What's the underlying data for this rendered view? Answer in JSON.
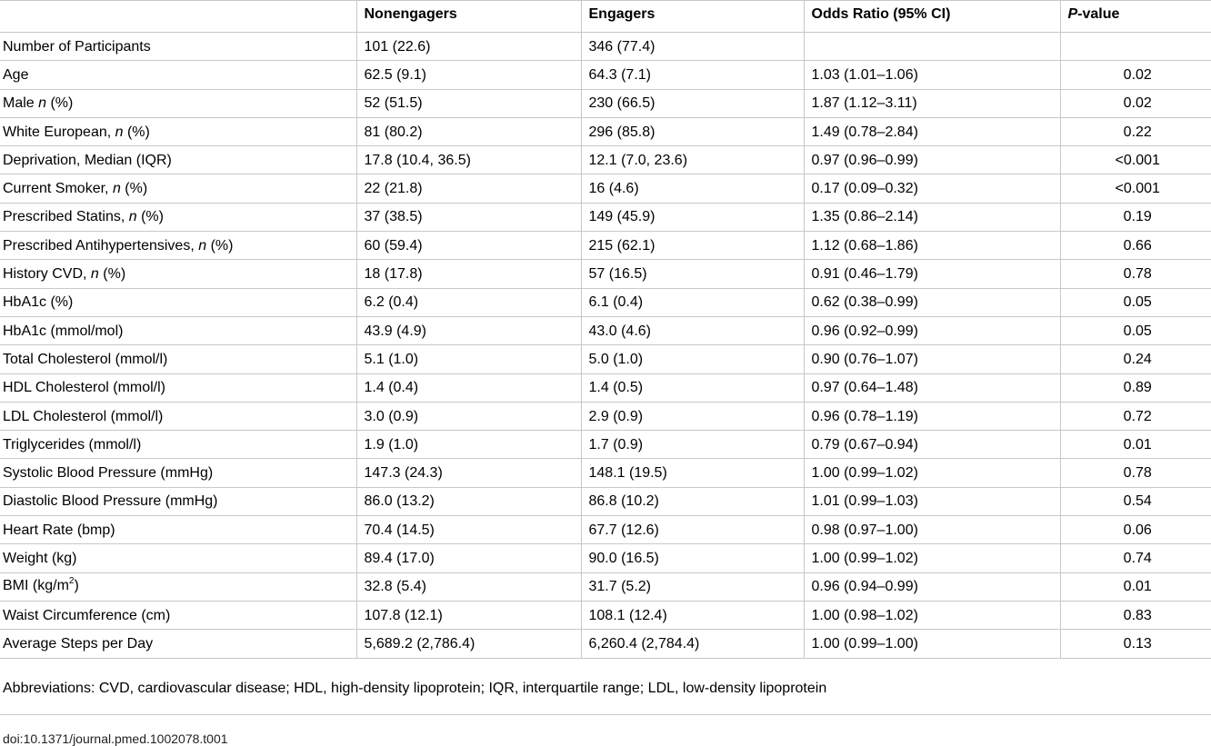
{
  "table": {
    "headers": {
      "col0": "",
      "col1": "Nonengagers",
      "col2": "Engagers",
      "col3": "Odds Ratio (95% CI)",
      "col4_italic": "P",
      "col4_rest": "-value"
    },
    "rows": [
      {
        "label": "Number of Participants",
        "non": "101 (22.6)",
        "eng": "346 (77.4)",
        "or": "",
        "p": ""
      },
      {
        "label": "Age",
        "non": "62.5 (9.1)",
        "eng": "64.3 (7.1)",
        "or": "1.03 (1.01–1.06)",
        "p": "0.02"
      },
      {
        "label_pre": "Male ",
        "label_it": "n",
        "label_post": " (%)",
        "non": "52 (51.5)",
        "eng": "230 (66.5)",
        "or": "1.87 (1.12–3.11)",
        "p": "0.02"
      },
      {
        "label_pre": "White European, ",
        "label_it": "n",
        "label_post": " (%)",
        "non": "81 (80.2)",
        "eng": "296 (85.8)",
        "or": "1.49 (0.78–2.84)",
        "p": "0.22"
      },
      {
        "label": "Deprivation, Median (IQR)",
        "non": "17.8 (10.4, 36.5)",
        "eng": "12.1 (7.0, 23.6)",
        "or": "0.97 (0.96–0.99)",
        "p": "<0.001"
      },
      {
        "label_pre": "Current Smoker, ",
        "label_it": "n",
        "label_post": " (%)",
        "non": "22 (21.8)",
        "eng": "16 (4.6)",
        "or": "0.17 (0.09–0.32)",
        "p": "<0.001"
      },
      {
        "label_pre": "Prescribed Statins, ",
        "label_it": "n",
        "label_post": " (%)",
        "non": "37 (38.5)",
        "eng": "149 (45.9)",
        "or": "1.35 (0.86–2.14)",
        "p": "0.19"
      },
      {
        "label_pre": "Prescribed Antihypertensives, ",
        "label_it": "n",
        "label_post": " (%)",
        "non": "60 (59.4)",
        "eng": "215 (62.1)",
        "or": "1.12 (0.68–1.86)",
        "p": "0.66"
      },
      {
        "label_pre": "History CVD, ",
        "label_it": "n",
        "label_post": " (%)",
        "non": "18 (17.8)",
        "eng": "57 (16.5)",
        "or": "0.91 (0.46–1.79)",
        "p": "0.78"
      },
      {
        "label": "HbA1c (%)",
        "non": "6.2 (0.4)",
        "eng": "6.1 (0.4)",
        "or": "0.62 (0.38–0.99)",
        "p": "0.05"
      },
      {
        "label": "HbA1c (mmol/mol)",
        "non": "43.9 (4.9)",
        "eng": "43.0 (4.6)",
        "or": "0.96 (0.92–0.99)",
        "p": "0.05"
      },
      {
        "label": "Total Cholesterol (mmol/l)",
        "non": "5.1 (1.0)",
        "eng": "5.0 (1.0)",
        "or": "0.90 (0.76–1.07)",
        "p": "0.24"
      },
      {
        "label": "HDL Cholesterol (mmol/l)",
        "non": "1.4 (0.4)",
        "eng": "1.4 (0.5)",
        "or": "0.97 (0.64–1.48)",
        "p": "0.89"
      },
      {
        "label": "LDL Cholesterol (mmol/l)",
        "non": "3.0 (0.9)",
        "eng": "2.9 (0.9)",
        "or": "0.96 (0.78–1.19)",
        "p": "0.72"
      },
      {
        "label": "Triglycerides (mmol/l)",
        "non": "1.9 (1.0)",
        "eng": "1.7 (0.9)",
        "or": "0.79 (0.67–0.94)",
        "p": "0.01"
      },
      {
        "label": "Systolic Blood Pressure (mmHg)",
        "non": "147.3 (24.3)",
        "eng": "148.1 (19.5)",
        "or": "1.00 (0.99–1.02)",
        "p": "0.78"
      },
      {
        "label": "Diastolic Blood Pressure (mmHg)",
        "non": "86.0 (13.2)",
        "eng": "86.8 (10.2)",
        "or": "1.01 (0.99–1.03)",
        "p": "0.54"
      },
      {
        "label": "Heart Rate (bmp)",
        "non": "70.4 (14.5)",
        "eng": "67.7 (12.6)",
        "or": "0.98 (0.97–1.00)",
        "p": "0.06"
      },
      {
        "label": "Weight (kg)",
        "non": "89.4 (17.0)",
        "eng": "90.0 (16.5)",
        "or": "1.00 (0.99–1.02)",
        "p": "0.74"
      },
      {
        "label_pre": "BMI (kg/m",
        "label_sup": "2",
        "label_post": ")",
        "non": "32.8 (5.4)",
        "eng": "31.7 (5.2)",
        "or": "0.96 (0.94–0.99)",
        "p": "0.01"
      },
      {
        "label": "Waist Circumference (cm)",
        "non": "107.8 (12.1)",
        "eng": "108.1 (12.4)",
        "or": "1.00 (0.98–1.02)",
        "p": "0.83"
      },
      {
        "label": "Average Steps per Day",
        "non": "5,689.2 (2,786.4)",
        "eng": "6,260.4 (2,784.4)",
        "or": "1.00 (0.99–1.00)",
        "p": "0.13"
      }
    ]
  },
  "footnote": "Abbreviations: CVD, cardiovascular disease; HDL, high-density lipoprotein; IQR, interquartile range; LDL, low-density lipoprotein",
  "doi": "doi:10.1371/journal.pmed.1002078.t001"
}
